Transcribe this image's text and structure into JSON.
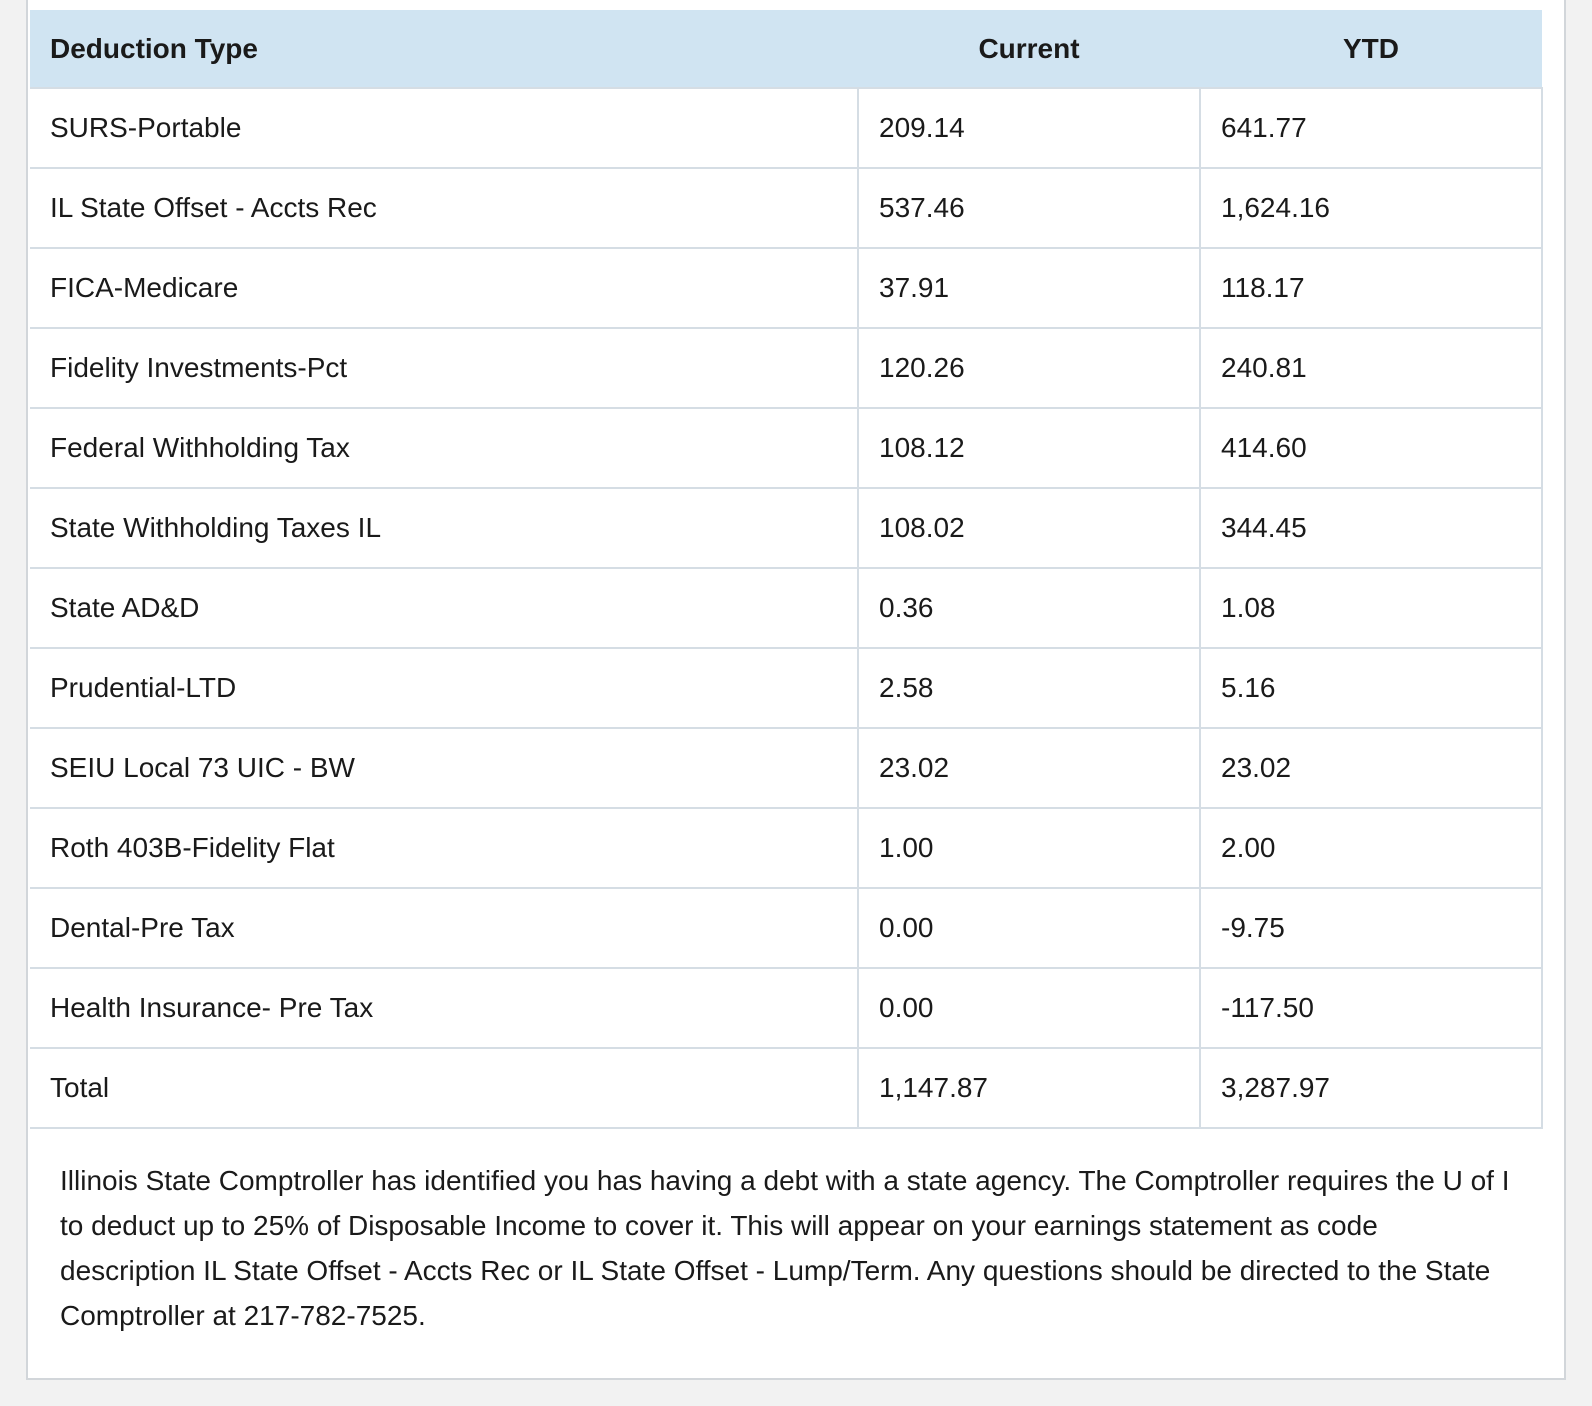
{
  "table": {
    "headers": {
      "type": "Deduction Type",
      "current": "Current",
      "ytd": "YTD"
    },
    "rows": [
      {
        "type": "SURS-Portable",
        "current": "209.14",
        "ytd": "641.77"
      },
      {
        "type": "IL State Offset - Accts Rec",
        "current": "537.46",
        "ytd": "1,624.16"
      },
      {
        "type": "FICA-Medicare",
        "current": "37.91",
        "ytd": "118.17"
      },
      {
        "type": "Fidelity Investments-Pct",
        "current": "120.26",
        "ytd": "240.81"
      },
      {
        "type": "Federal Withholding Tax",
        "current": "108.12",
        "ytd": "414.60"
      },
      {
        "type": "State Withholding Taxes IL",
        "current": "108.02",
        "ytd": "344.45"
      },
      {
        "type": "State AD&D",
        "current": "0.36",
        "ytd": "1.08"
      },
      {
        "type": "Prudential-LTD",
        "current": "2.58",
        "ytd": "5.16"
      },
      {
        "type": "SEIU Local 73 UIC - BW",
        "current": "23.02",
        "ytd": "23.02"
      },
      {
        "type": "Roth 403B-Fidelity Flat",
        "current": "1.00",
        "ytd": "2.00"
      },
      {
        "type": "Dental-Pre Tax",
        "current": "0.00",
        "ytd": "-9.75"
      },
      {
        "type": "Health Insurance- Pre Tax",
        "current": "0.00",
        "ytd": "-117.50"
      },
      {
        "type": "Total",
        "current": "1,147.87",
        "ytd": "3,287.97"
      }
    ]
  },
  "note": "Illinois State Comptroller has identified you has having a debt with a state agency. The Comptroller requires the U of I to deduct up to 25% of Disposable Income to cover it. This will appear on your earnings statement as code description IL State Offset - Accts Rec or IL State Offset - Lump/Term. Any questions should be directed to the State Comptroller at 217-782-7525."
}
